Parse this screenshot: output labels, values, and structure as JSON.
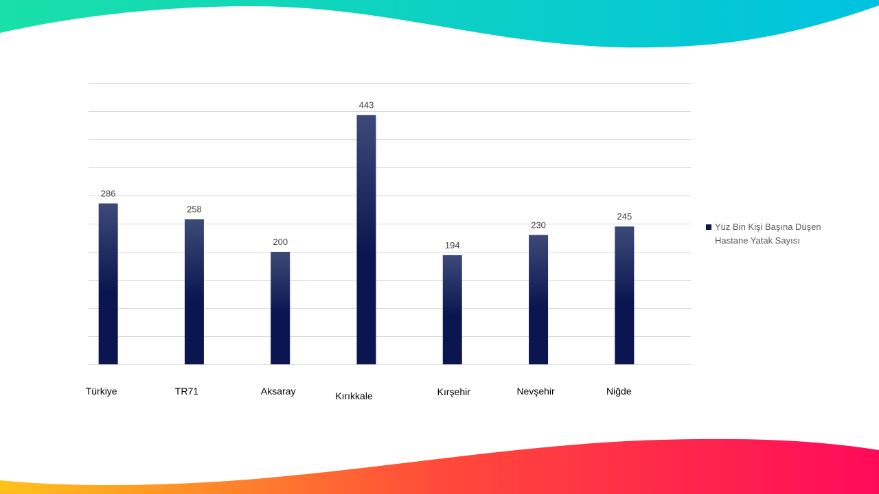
{
  "colors": {
    "top_wave_start": "#19e0a8",
    "top_wave_end": "#00c2e0",
    "bottom_wave_start": "#ffc21a",
    "bottom_wave_mid": "#ff4a3a",
    "bottom_wave_end": "#ff0a5a",
    "bar_top": "#3d4a78",
    "bar_bottom": "#0b1650",
    "gridline": "#d9d9d9",
    "label_text": "#000000",
    "value_text": "#404040"
  },
  "chart_data": {
    "type": "bar",
    "categories": [
      "Türkiye",
      "TR71",
      "Aksaray",
      "Kırıkkale",
      "Kırşehir",
      "Nevşehir",
      "Niğde"
    ],
    "series": [
      {
        "name": "Yüz Bin Kişi Başına Düşen Hastane Yatak Sayısı",
        "values": [
          286,
          258,
          200,
          443,
          194,
          230,
          245
        ]
      }
    ],
    "ylim": [
      0,
      500
    ],
    "y_gridline_step": 50,
    "grid": true,
    "y_tick_labels_visible": false,
    "legend_position": "right",
    "data_labels": true
  }
}
